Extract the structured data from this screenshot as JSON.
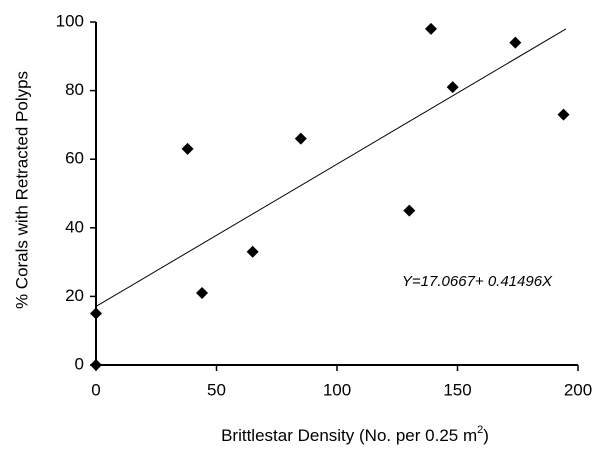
{
  "chart_data": {
    "type": "scatter",
    "x_label": {
      "text": "Brittlestar Density (No. per 0.25 m",
      "superscript": "2",
      "suffix": ")"
    },
    "y_label": "% Corals with Retracted Polyps",
    "x": [
      0,
      0,
      38,
      44,
      65,
      85,
      130,
      139,
      148,
      174,
      194
    ],
    "values": [
      0,
      15,
      63,
      21,
      33,
      66,
      45,
      98,
      81,
      94,
      73
    ],
    "color": "#000000",
    "xlim": [
      0,
      200
    ],
    "xticks": [
      0,
      50,
      100,
      150,
      200
    ],
    "ylim": [
      0,
      100
    ],
    "yticks": [
      0,
      20,
      40,
      60,
      80,
      100
    ],
    "trendline": {
      "intercept": 17.0667,
      "slope": 0.41496,
      "x_range": [
        0,
        195
      ]
    },
    "annotation": "Y=17.0667+ 0.41496X"
  }
}
